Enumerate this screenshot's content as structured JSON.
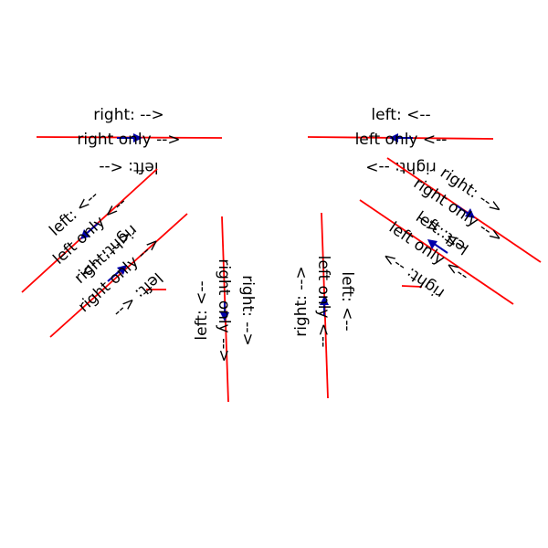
{
  "colors": {
    "line": "#ff0000",
    "arrow": "#0000aa",
    "text": "#000000",
    "background": "#ffffff"
  },
  "diagram": {
    "groups": [
      {
        "id": "g1",
        "label_right": "right: -->",
        "label_right_only": "right only -->",
        "label_left": "left: <--"
      },
      {
        "id": "g2",
        "label_left": "left: <--",
        "label_left_only": "left only <--",
        "label_right": "right: -->"
      },
      {
        "id": "g3",
        "label_left": "left: <--",
        "label_left_only": "left only <--",
        "label_right": "right: -->"
      },
      {
        "id": "g4",
        "label_right": "right: -->",
        "label_right_only": "right only -->",
        "label_left": "left: <--"
      },
      {
        "id": "g5",
        "label_left": "left: <--",
        "label_right_only": "right only -->",
        "label_right": "right: -->"
      },
      {
        "id": "g6",
        "label_right": "right: -->",
        "label_left_only": "left only <--",
        "label_left": "left: <--"
      },
      {
        "id": "g7",
        "label_left": "left: <--",
        "label_left_only": "left only <--",
        "label_right": "right: -->"
      },
      {
        "id": "g8",
        "label_right": "right: -->",
        "label_right_only": "right only -->",
        "label_left": "left: <--"
      }
    ]
  }
}
